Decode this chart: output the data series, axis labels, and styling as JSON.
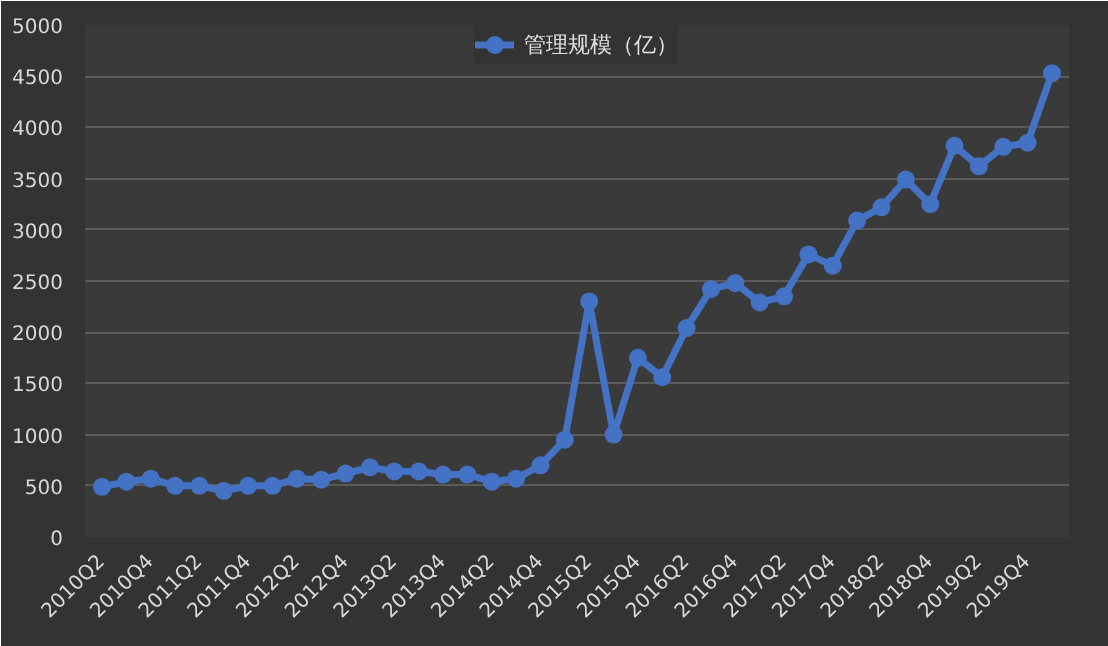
{
  "chart_data": {
    "type": "line",
    "categories": [
      "2010Q2",
      null,
      "2010Q4",
      null,
      "2011Q2",
      null,
      "2011Q4",
      null,
      "2012Q2",
      null,
      "2012Q4",
      null,
      "2013Q2",
      null,
      "2013Q4",
      null,
      "2014Q2",
      null,
      "2014Q4",
      null,
      "2015Q2",
      null,
      "2015Q4",
      null,
      "2016Q2",
      null,
      "2016Q4",
      null,
      "2017Q2",
      null,
      "2017Q4",
      null,
      "2018Q2",
      null,
      "2018Q4",
      null,
      "2019Q2",
      null,
      "2019Q4",
      null
    ],
    "series": [
      {
        "name": "管理规模（亿）",
        "color": "#4472c4",
        "values": [
          490,
          540,
          570,
          500,
          500,
          450,
          500,
          500,
          570,
          560,
          620,
          680,
          640,
          640,
          610,
          610,
          540,
          570,
          700,
          950,
          2300,
          1000,
          1750,
          1560,
          2040,
          2420,
          2480,
          2290,
          2350,
          2760,
          2650,
          3090,
          3220,
          3490,
          3250,
          3820,
          3620,
          3810,
          3850,
          4530
        ]
      }
    ],
    "ylim": [
      0,
      5000
    ],
    "yticks": [
      0,
      500,
      1000,
      1500,
      2000,
      2500,
      3000,
      3500,
      4000,
      4500,
      5000
    ],
    "grid": "y",
    "legend": "top",
    "marker": "circle",
    "line_style": "solid"
  }
}
